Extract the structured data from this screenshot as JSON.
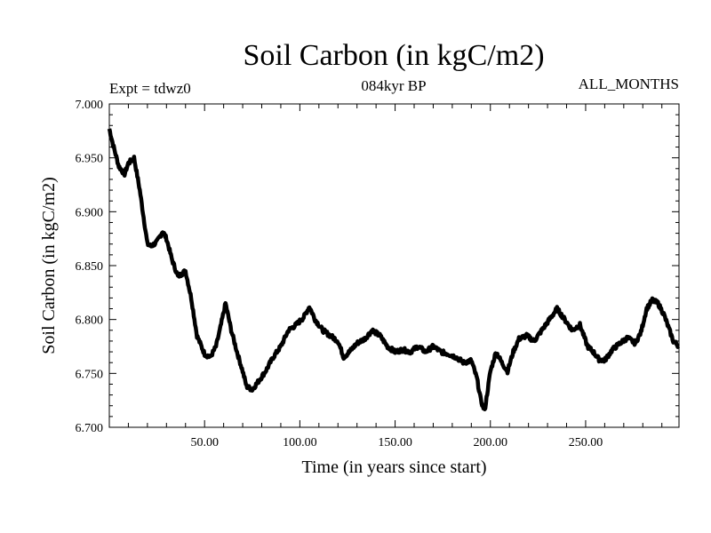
{
  "chart_data": {
    "type": "line",
    "title": "Soil Carbon (in kgC/m2)",
    "subtitle": "084kyr BP",
    "annotation_left": "Expt = tdwz0",
    "annotation_right": "ALL_MONTHS",
    "xlabel": "Time (in years since start)",
    "ylabel": "Soil Carbon (in kgC/m2)",
    "xlim": [
      0,
      299
    ],
    "ylim": [
      6.7,
      7.0
    ],
    "xticks": [
      50,
      100,
      150,
      200,
      250
    ],
    "xtick_labels": [
      "50.00",
      "100.00",
      "150.00",
      "200.00",
      "250.00"
    ],
    "yticks": [
      6.7,
      6.75,
      6.8,
      6.85,
      6.9,
      6.95,
      7.0
    ],
    "ytick_labels": [
      "6.700",
      "6.750",
      "6.800",
      "6.850",
      "6.900",
      "6.950",
      "7.000"
    ],
    "grid": false,
    "line_color": "#000000",
    "series": [
      {
        "x": [
          0,
          2,
          5,
          8,
          10,
          13,
          16,
          20,
          22,
          25,
          28,
          30,
          33,
          36,
          40,
          43,
          46,
          50,
          53,
          56,
          58,
          61,
          64,
          67,
          70,
          72,
          75,
          78,
          82,
          86,
          90,
          94,
          98,
          102,
          105,
          108,
          112,
          116,
          120,
          123,
          126,
          130,
          134,
          138,
          142,
          146,
          150,
          154,
          158,
          162,
          166,
          170,
          174,
          178,
          182,
          186,
          190,
          193,
          195,
          197,
          200,
          203,
          206,
          209,
          212,
          215,
          219,
          223,
          227,
          231,
          235,
          239,
          243,
          247,
          251,
          254,
          257,
          260,
          264,
          268,
          272,
          276,
          279,
          282,
          285,
          288,
          291,
          294,
          296,
          299
        ],
        "y": [
          6.977,
          6.962,
          6.942,
          6.935,
          6.945,
          6.95,
          6.92,
          6.87,
          6.868,
          6.872,
          6.882,
          6.875,
          6.855,
          6.84,
          6.845,
          6.82,
          6.785,
          6.768,
          6.765,
          6.775,
          6.79,
          6.815,
          6.79,
          6.77,
          6.752,
          6.738,
          6.735,
          6.742,
          6.752,
          6.765,
          6.775,
          6.79,
          6.795,
          6.802,
          6.812,
          6.8,
          6.79,
          6.785,
          6.78,
          6.765,
          6.77,
          6.778,
          6.782,
          6.79,
          6.785,
          6.775,
          6.77,
          6.772,
          6.77,
          6.775,
          6.77,
          6.775,
          6.77,
          6.768,
          6.765,
          6.76,
          6.762,
          6.745,
          6.725,
          6.715,
          6.752,
          6.77,
          6.76,
          6.752,
          6.77,
          6.782,
          6.785,
          6.78,
          6.79,
          6.8,
          6.81,
          6.8,
          6.79,
          6.795,
          6.775,
          6.77,
          6.763,
          6.762,
          6.772,
          6.778,
          6.783,
          6.778,
          6.788,
          6.81,
          6.818,
          6.815,
          6.805,
          6.79,
          6.78,
          6.775
        ]
      }
    ]
  }
}
